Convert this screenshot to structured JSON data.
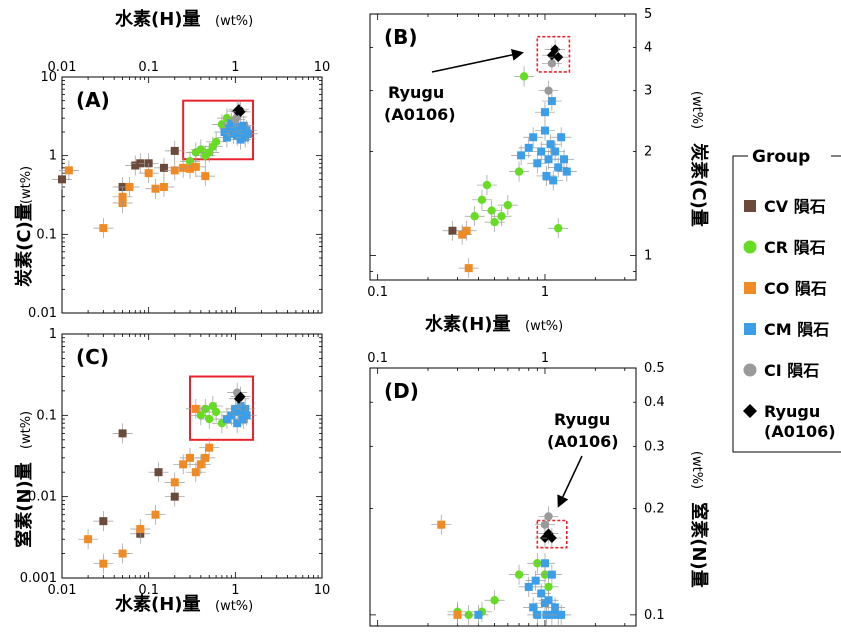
{
  "axis_labels": {
    "h": "水素(H)量",
    "c": "炭素(C)量",
    "n": "窒素(N)量",
    "unit": "(wt%)"
  },
  "legend": {
    "title": "Group",
    "items": [
      {
        "label": "CV 隕石",
        "color": "#6b4a3a",
        "marker": "square"
      },
      {
        "label": "CR 隕石",
        "color": "#66dd22",
        "marker": "circle"
      },
      {
        "label": "CO 隕石",
        "color": "#f08a24",
        "marker": "square"
      },
      {
        "label": "CM 隕石",
        "color": "#3a9ee8",
        "marker": "square"
      },
      {
        "label": "CI 隕石",
        "color": "#9a9a9a",
        "marker": "circle"
      },
      {
        "label": "Ryugu\n(A0106)",
        "color": "#000000",
        "marker": "diamond"
      }
    ]
  },
  "annotation": "Ryugu\n(A0106)",
  "chart_data": [
    {
      "panel": "(A)",
      "type": "scatter",
      "log_x": true,
      "log_y": true,
      "xlim": [
        0.01,
        10
      ],
      "ylim": [
        0.01,
        10
      ],
      "x_ticks": [
        "0.01",
        "0.1",
        "1",
        "10"
      ],
      "y_ticks": [
        "0.01",
        "0.1",
        "1",
        "10"
      ],
      "xlabel": "水素(H)量 (wt%)",
      "ylabel": "炭素(C)量 (wt%)",
      "x_axis_position": "top",
      "highlight_box": {
        "x": [
          0.25,
          1.6
        ],
        "y": [
          0.9,
          5
        ]
      },
      "series": [
        {
          "name": "CV 隕石",
          "points": [
            [
              0.01,
              0.5
            ],
            [
              0.05,
              0.4
            ],
            [
              0.07,
              0.75
            ],
            [
              0.08,
              0.8
            ],
            [
              0.1,
              0.8
            ],
            [
              0.15,
              0.7
            ],
            [
              0.2,
              1.15
            ]
          ]
        },
        {
          "name": "CR 隕石",
          "points": [
            [
              0.3,
              0.85
            ],
            [
              0.35,
              1.1
            ],
            [
              0.4,
              1.2
            ],
            [
              0.45,
              1.0
            ],
            [
              0.5,
              1.1
            ],
            [
              0.55,
              1.3
            ],
            [
              0.6,
              1.5
            ],
            [
              0.7,
              2.5
            ],
            [
              0.8,
              3.0
            ]
          ]
        },
        {
          "name": "CO 隕石",
          "points": [
            [
              0.012,
              0.65
            ],
            [
              0.03,
              0.12
            ],
            [
              0.05,
              0.25
            ],
            [
              0.05,
              0.3
            ],
            [
              0.06,
              0.4
            ],
            [
              0.1,
              0.6
            ],
            [
              0.12,
              0.38
            ],
            [
              0.15,
              0.4
            ],
            [
              0.2,
              0.65
            ],
            [
              0.25,
              0.7
            ],
            [
              0.3,
              0.68
            ],
            [
              0.35,
              0.72
            ],
            [
              0.45,
              0.55
            ]
          ]
        },
        {
          "name": "CM 隕石",
          "points": [
            [
              0.75,
              2.0
            ],
            [
              0.8,
              1.7
            ],
            [
              0.85,
              2.2
            ],
            [
              0.9,
              2.6
            ],
            [
              0.95,
              1.9
            ],
            [
              1.0,
              2.1
            ],
            [
              1.05,
              1.8
            ],
            [
              1.1,
              2.3
            ],
            [
              1.15,
              1.6
            ],
            [
              1.2,
              2.0
            ],
            [
              1.25,
              2.4
            ],
            [
              1.3,
              1.7
            ],
            [
              1.35,
              2.1
            ],
            [
              1.4,
              1.9
            ]
          ]
        },
        {
          "name": "CI 隕石",
          "points": [
            [
              1.0,
              2.9
            ],
            [
              1.05,
              3.1
            ]
          ]
        },
        {
          "name": "Ryugu",
          "points": [
            [
              1.05,
              3.7
            ],
            [
              1.1,
              3.9
            ],
            [
              1.15,
              3.6
            ]
          ]
        }
      ]
    },
    {
      "panel": "(B)",
      "type": "scatter",
      "log_x": true,
      "log_y": true,
      "xlim": [
        0.09,
        3.5
      ],
      "ylim": [
        0.85,
        5
      ],
      "x_ticks": [
        "0.1",
        "1"
      ],
      "y_ticks": [
        "1",
        "2",
        "3",
        "4",
        "5"
      ],
      "xlabel": "水素(H)量 (wt%)",
      "ylabel": "炭素(C)量 (wt%)",
      "x_axis_position": "bottom",
      "y_axis_position": "right",
      "highlight_box": {
        "x": [
          0.9,
          1.4
        ],
        "y": [
          3.4,
          4.3
        ]
      },
      "series": [
        {
          "name": "CV 隕石",
          "points": [
            [
              0.28,
              1.18
            ]
          ]
        },
        {
          "name": "CR 隕石",
          "points": [
            [
              0.38,
              1.3
            ],
            [
              0.42,
              1.45
            ],
            [
              0.45,
              1.6
            ],
            [
              0.48,
              1.35
            ],
            [
              0.5,
              1.25
            ],
            [
              0.55,
              1.3
            ],
            [
              0.6,
              1.4
            ],
            [
              0.7,
              1.75
            ],
            [
              0.75,
              3.3
            ],
            [
              1.2,
              1.2
            ]
          ]
        },
        {
          "name": "CO 隕石",
          "points": [
            [
              0.32,
              1.15
            ],
            [
              0.34,
              1.18
            ],
            [
              0.35,
              0.92
            ]
          ]
        },
        {
          "name": "CM 隕石",
          "points": [
            [
              0.72,
              1.95
            ],
            [
              0.8,
              2.05
            ],
            [
              0.85,
              2.2
            ],
            [
              0.9,
              1.85
            ],
            [
              0.95,
              2.0
            ],
            [
              1.0,
              2.3
            ],
            [
              1.02,
              1.7
            ],
            [
              1.05,
              1.9
            ],
            [
              1.08,
              2.1
            ],
            [
              1.12,
              1.65
            ],
            [
              1.15,
              2.0
            ],
            [
              1.2,
              1.8
            ],
            [
              1.25,
              2.2
            ],
            [
              1.3,
              1.9
            ],
            [
              1.35,
              1.75
            ],
            [
              1.0,
              2.6
            ],
            [
              1.1,
              2.8
            ]
          ]
        },
        {
          "name": "CI 隕石",
          "points": [
            [
              1.05,
              3.0
            ],
            [
              1.1,
              3.6
            ]
          ]
        },
        {
          "name": "Ryugu",
          "points": [
            [
              1.1,
              3.8
            ],
            [
              1.15,
              3.95
            ],
            [
              1.2,
              3.75
            ]
          ]
        }
      ]
    },
    {
      "panel": "(C)",
      "type": "scatter",
      "log_x": true,
      "log_y": true,
      "xlim": [
        0.01,
        10
      ],
      "ylim": [
        0.001,
        1
      ],
      "x_ticks": [
        "0.01",
        "0.1",
        "1",
        "10"
      ],
      "y_ticks": [
        "0.001",
        "0.01",
        "0.1",
        "1"
      ],
      "xlabel": "水素(H)量 (wt%)",
      "ylabel": "窒素(N)量 (wt%)",
      "x_axis_position": "bottom",
      "highlight_box": {
        "x": [
          0.3,
          1.6
        ],
        "y": [
          0.05,
          0.3
        ]
      },
      "series": [
        {
          "name": "CV 隕石",
          "points": [
            [
              0.03,
              0.005
            ],
            [
              0.05,
              0.06
            ],
            [
              0.08,
              0.0035
            ],
            [
              0.13,
              0.02
            ],
            [
              0.2,
              0.01
            ]
          ]
        },
        {
          "name": "CR 隕石",
          "points": [
            [
              0.4,
              0.1
            ],
            [
              0.45,
              0.12
            ],
            [
              0.5,
              0.09
            ],
            [
              0.55,
              0.13
            ],
            [
              0.6,
              0.11
            ],
            [
              0.7,
              0.08
            ]
          ]
        },
        {
          "name": "CO 隕石",
          "points": [
            [
              0.02,
              0.003
            ],
            [
              0.03,
              0.0015
            ],
            [
              0.05,
              0.002
            ],
            [
              0.08,
              0.004
            ],
            [
              0.12,
              0.006
            ],
            [
              0.2,
              0.015
            ],
            [
              0.25,
              0.025
            ],
            [
              0.3,
              0.03
            ],
            [
              0.35,
              0.02
            ],
            [
              0.4,
              0.025
            ],
            [
              0.45,
              0.03
            ],
            [
              0.5,
              0.04
            ],
            [
              0.35,
              0.12
            ]
          ]
        },
        {
          "name": "CM 隕石",
          "points": [
            [
              0.8,
              0.09
            ],
            [
              0.9,
              0.1
            ],
            [
              1.0,
              0.12
            ],
            [
              1.05,
              0.08
            ],
            [
              1.1,
              0.11
            ],
            [
              1.15,
              0.13
            ],
            [
              1.2,
              0.1
            ],
            [
              1.25,
              0.09
            ],
            [
              1.3,
              0.12
            ],
            [
              1.35,
              0.1
            ]
          ]
        },
        {
          "name": "CI 隕石",
          "points": [
            [
              1.05,
              0.19
            ]
          ]
        },
        {
          "name": "Ryugu",
          "points": [
            [
              1.1,
              0.16
            ],
            [
              1.15,
              0.17
            ]
          ]
        }
      ]
    },
    {
      "panel": "(D)",
      "type": "scatter",
      "log_x": true,
      "log_y": true,
      "xlim": [
        0.09,
        3.5
      ],
      "ylim": [
        0.093,
        0.5
      ],
      "x_ticks": [
        "0.1",
        "1"
      ],
      "y_ticks": [
        "0.1",
        "0.2",
        "0.3",
        "0.4",
        "0.5"
      ],
      "xlabel": "",
      "ylabel": "窒素(N)量 (wt%)",
      "x_axis_position": "top",
      "y_axis_position": "right",
      "highlight_box": {
        "x": [
          0.9,
          1.35
        ],
        "y": [
          0.155,
          0.185
        ]
      },
      "series": [
        {
          "name": "CR 隕石",
          "points": [
            [
              0.3,
              0.102
            ],
            [
              0.35,
              0.1
            ],
            [
              0.42,
              0.102
            ],
            [
              0.5,
              0.11
            ],
            [
              0.7,
              0.13
            ],
            [
              0.9,
              0.14
            ],
            [
              1.0,
              0.13
            ],
            [
              1.05,
              0.12
            ]
          ]
        },
        {
          "name": "CO 隕石",
          "points": [
            [
              0.24,
              0.18
            ],
            [
              0.3,
              0.1
            ]
          ]
        },
        {
          "name": "CM 隕石",
          "points": [
            [
              0.4,
              0.1
            ],
            [
              0.8,
              0.12
            ],
            [
              0.85,
              0.105
            ],
            [
              0.9,
              0.1
            ],
            [
              0.95,
              0.115
            ],
            [
              1.0,
              0.108
            ],
            [
              1.02,
              0.1
            ],
            [
              1.05,
              0.11
            ],
            [
              1.1,
              0.1
            ],
            [
              1.15,
              0.105
            ],
            [
              1.2,
              0.1
            ],
            [
              0.88,
              0.125
            ],
            [
              1.0,
              0.14
            ],
            [
              1.1,
              0.13
            ],
            [
              1.25,
              0.1
            ]
          ]
        },
        {
          "name": "CI 隕石",
          "points": [
            [
              1.0,
              0.18
            ],
            [
              1.05,
              0.19
            ]
          ]
        },
        {
          "name": "Ryugu",
          "points": [
            [
              1.0,
              0.165
            ],
            [
              1.05,
              0.17
            ],
            [
              1.1,
              0.165
            ]
          ]
        }
      ]
    }
  ]
}
